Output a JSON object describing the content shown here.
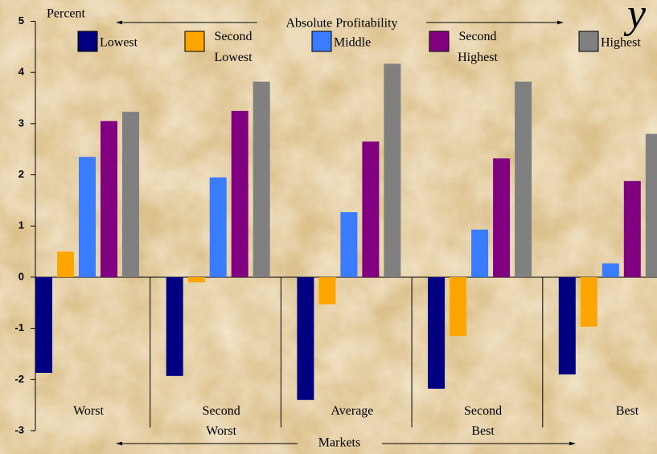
{
  "chart_data": {
    "type": "bar",
    "title": "y",
    "y_label": "Percent",
    "annotations": [
      "Absolute Profitability",
      "Markets"
    ],
    "categories": [
      "Worst",
      "Second Worst",
      "Average",
      "Second Best",
      "Best"
    ],
    "series": [
      {
        "name": "Lowest",
        "color": "#000080",
        "values": [
          -1.87,
          -1.93,
          -2.4,
          -2.18,
          -1.9
        ]
      },
      {
        "name": "Second Lowest",
        "color": "#ffa500",
        "values": [
          0.5,
          -0.1,
          -0.53,
          -1.15,
          -0.97
        ]
      },
      {
        "name": "Middle",
        "color": "#3a7cff",
        "values": [
          2.35,
          1.95,
          1.27,
          0.93,
          0.27
        ]
      },
      {
        "name": "Second Highest",
        "color": "#800080",
        "values": [
          3.05,
          3.25,
          2.65,
          2.32,
          1.88
        ]
      },
      {
        "name": "Highest",
        "color": "#808080",
        "values": [
          3.23,
          3.82,
          4.17,
          3.82,
          2.8
        ]
      }
    ],
    "ylim": [
      -3,
      5
    ],
    "yticks": [
      -3,
      -2,
      -1,
      0,
      1,
      2,
      3,
      4,
      5
    ]
  }
}
